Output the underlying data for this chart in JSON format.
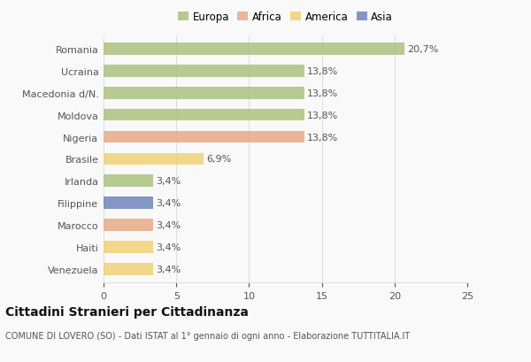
{
  "countries": [
    "Romania",
    "Ucraina",
    "Macedonia d/N.",
    "Moldova",
    "Nigeria",
    "Brasile",
    "Irlanda",
    "Filippine",
    "Marocco",
    "Haiti",
    "Venezuela"
  ],
  "values": [
    20.7,
    13.8,
    13.8,
    13.8,
    13.8,
    6.9,
    3.4,
    3.4,
    3.4,
    3.4,
    3.4
  ],
  "labels": [
    "20,7%",
    "13,8%",
    "13,8%",
    "13,8%",
    "13,8%",
    "6,9%",
    "3,4%",
    "3,4%",
    "3,4%",
    "3,4%",
    "3,4%"
  ],
  "colors": [
    "#a8c07a",
    "#a8c07a",
    "#a8c07a",
    "#a8c07a",
    "#e8a882",
    "#f0d070",
    "#a8c07a",
    "#6b80b8",
    "#e8a882",
    "#f0d070",
    "#f0d070"
  ],
  "legend_labels": [
    "Europa",
    "Africa",
    "America",
    "Asia"
  ],
  "legend_colors": [
    "#a8c07a",
    "#e8a882",
    "#f0d070",
    "#6b80b8"
  ],
  "title": "Cittadini Stranieri per Cittadinanza",
  "subtitle": "COMUNE DI LOVERO (SO) - Dati ISTAT al 1° gennaio di ogni anno - Elaborazione TUTTITALIA.IT",
  "xlim": [
    0,
    25
  ],
  "xticks": [
    0,
    5,
    10,
    15,
    20,
    25
  ],
  "background_color": "#f9f9f9",
  "grid_color": "#dddddd",
  "text_color": "#555555",
  "title_color": "#111111",
  "subtitle_color": "#555555",
  "title_fontsize": 10,
  "subtitle_fontsize": 7,
  "tick_fontsize": 8,
  "label_fontsize": 8,
  "legend_fontsize": 8.5,
  "bar_height": 0.55,
  "bar_alpha": 0.82
}
